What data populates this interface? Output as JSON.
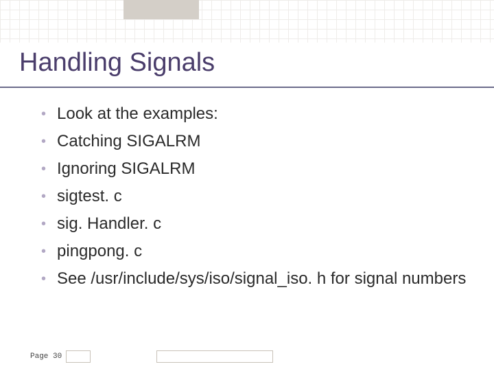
{
  "title": "Handling Signals",
  "title_color": "#4a3d6b",
  "title_fontsize": 38,
  "bullet_color": "#b2a8c4",
  "text_color": "#2a2a2a",
  "text_fontsize": 24,
  "bullets": [
    "Look at the examples:",
    "Catching SIGALRM",
    "Ignoring SIGALRM",
    "sigtest. c",
    "sig. Handler. c",
    "pingpong. c",
    "See /usr/include/sys/iso/signal_iso. h for signal numbers"
  ],
  "footer": {
    "page_label": "Page 30"
  },
  "background_color": "#ffffff",
  "grid_color": "#e8e4e0",
  "tab_color": "#d4cfc8"
}
